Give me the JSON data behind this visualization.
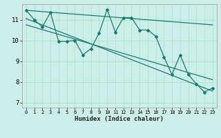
{
  "bg_color": "#cceee8",
  "grid_color": "#aaddcc",
  "line_color": "#1a7a6e",
  "xlim": [
    -0.5,
    23.5
  ],
  "ylim": [
    6.75,
    11.75
  ],
  "yticks": [
    7,
    8,
    9,
    10,
    11
  ],
  "xticks": [
    0,
    1,
    2,
    3,
    4,
    5,
    6,
    7,
    8,
    9,
    10,
    11,
    12,
    13,
    14,
    15,
    16,
    17,
    18,
    19,
    20,
    21,
    22,
    23
  ],
  "xlabel": "Humidex (Indice chaleur)",
  "jagged_x": [
    0,
    1,
    2,
    3,
    4,
    5,
    6,
    7,
    8,
    9,
    10,
    11,
    12,
    13,
    14,
    15,
    16,
    17,
    18,
    19,
    20,
    21,
    22,
    23
  ],
  "jagged_y": [
    11.45,
    11.0,
    10.65,
    11.35,
    9.95,
    9.95,
    10.0,
    9.3,
    9.6,
    10.35,
    11.5,
    10.4,
    11.1,
    11.1,
    10.5,
    10.5,
    10.2,
    9.2,
    8.35,
    9.3,
    8.35,
    7.9,
    7.5,
    7.7
  ],
  "trend1_x": [
    0,
    23
  ],
  "trend1_y": [
    11.45,
    10.75
  ],
  "trend2_x": [
    0,
    23
  ],
  "trend2_y": [
    11.05,
    7.55
  ],
  "trend3_x": [
    0,
    23
  ],
  "trend3_y": [
    10.75,
    8.1
  ]
}
